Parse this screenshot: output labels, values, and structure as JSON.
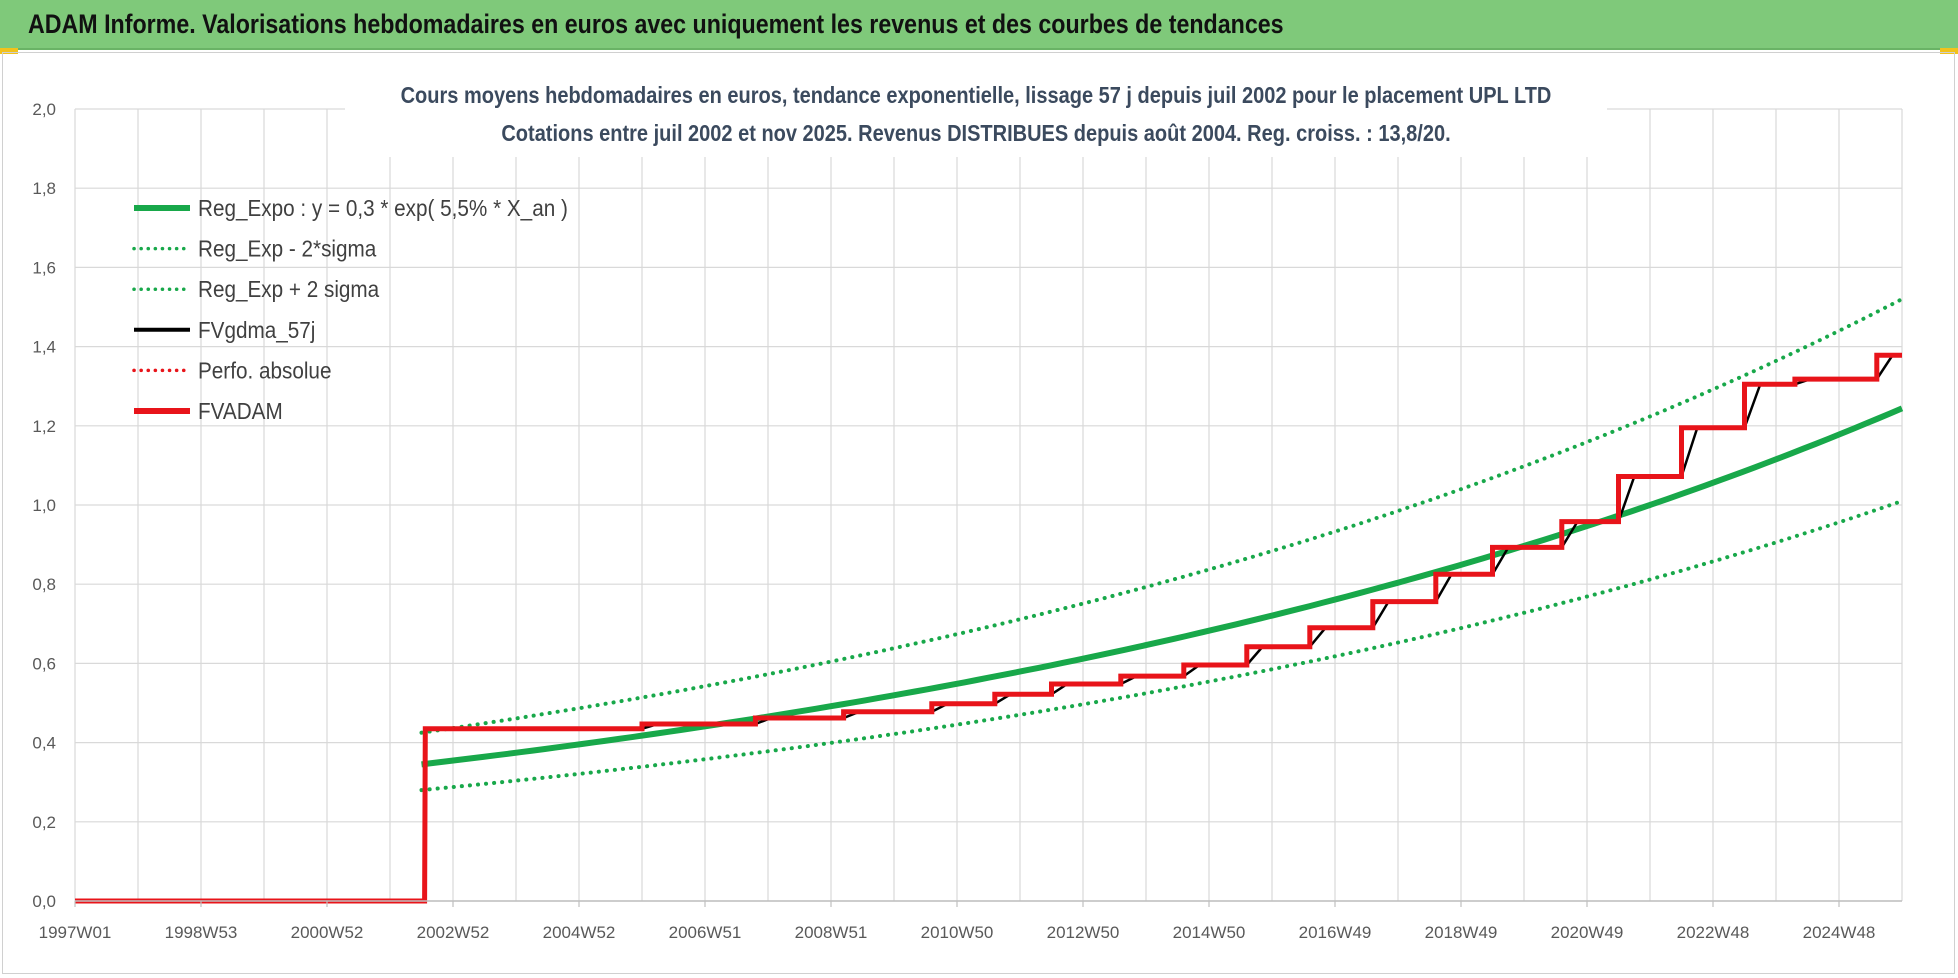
{
  "banner": {
    "title": "ADAM Informe. Valorisations hebdomadaires en euros avec uniquement les revenus et des courbes de tendances"
  },
  "colors": {
    "banner_bg": "#7fc97a",
    "green": "#18a84a",
    "red": "#e8141a",
    "black": "#000000",
    "grid": "#d9d9d9",
    "axis_text": "#595959"
  },
  "chart_data": {
    "type": "line",
    "title_line1": "Cours moyens hebdomadaires en euros, tendance exponentielle, lissage 57 j depuis juil 2002 pour le placement UPL LTD",
    "title_line2": "Cotations entre juil 2002 et nov 2025. Revenus DISTRIBUES depuis août 2004. Reg. croiss. : 13,8/20.",
    "xlabel": "",
    "ylabel": "",
    "x_range": [
      1997.0,
      2026.0
    ],
    "ylim": [
      0,
      2
    ],
    "y_ticks": [
      "0,0",
      "0,2",
      "0,4",
      "0,6",
      "0,8",
      "1,0",
      "1,2",
      "1,4",
      "1,6",
      "1,8",
      "2,0"
    ],
    "x_tick_labels": [
      "1997W01",
      "1998W53",
      "2000W52",
      "2002W52",
      "2004W52",
      "2006W51",
      "2008W51",
      "2010W50",
      "2012W50",
      "2014W50",
      "2016W49",
      "2018W49",
      "2020W49",
      "2022W48",
      "2024W48"
    ],
    "x_tick_positions": [
      1997.0,
      1999.0,
      2001.0,
      2003.0,
      2005.0,
      2007.0,
      2009.0,
      2011.0,
      2013.0,
      2015.0,
      2017.0,
      2019.0,
      2021.0,
      2023.0,
      2025.0
    ],
    "grid": true,
    "legend_position": "top-left",
    "legend": [
      {
        "label": "Reg_Expo : y = 0,3 * exp( 5,5% *  X_an )",
        "color": "#18a84a",
        "style": "solid-thick"
      },
      {
        "label": "Reg_Exp - 2*sigma",
        "color": "#18a84a",
        "style": "dotted"
      },
      {
        "label": "Reg_Exp + 2 sigma",
        "color": "#18a84a",
        "style": "dotted"
      },
      {
        "label": "FVgdma_57j",
        "color": "#000000",
        "style": "solid"
      },
      {
        "label": "Perfo. absolue",
        "color": "#e8141a",
        "style": "dotted"
      },
      {
        "label": "FVADAM",
        "color": "#e8141a",
        "style": "solid-thick"
      }
    ],
    "series": [
      {
        "name": "Reg_Expo",
        "x": [
          2002.5,
          2004,
          2006,
          2008,
          2010,
          2012,
          2014,
          2016,
          2018,
          2020,
          2022,
          2024,
          2026
        ],
        "values": [
          0.345,
          0.373,
          0.418,
          0.468,
          0.523,
          0.586,
          0.655,
          0.734,
          0.821,
          0.918,
          1.028,
          1.15,
          1.244
        ]
      },
      {
        "name": "Reg_Exp - 2*sigma",
        "x": [
          2002.5,
          2004,
          2006,
          2008,
          2010,
          2012,
          2014,
          2016,
          2018,
          2020,
          2022,
          2024,
          2026
        ],
        "values": [
          0.28,
          0.303,
          0.339,
          0.38,
          0.425,
          0.476,
          0.532,
          0.596,
          0.667,
          0.746,
          0.835,
          0.935,
          1.01
        ]
      },
      {
        "name": "Reg_Exp + 2 sigma",
        "x": [
          2002.5,
          2004,
          2006,
          2008,
          2010,
          2012,
          2014,
          2016,
          2018,
          2020,
          2022,
          2024,
          2026
        ],
        "values": [
          0.425,
          0.459,
          0.514,
          0.575,
          0.643,
          0.72,
          0.806,
          0.902,
          1.01,
          1.13,
          1.265,
          1.415,
          1.52
        ]
      },
      {
        "name": "FVADAM",
        "x": [
          1997.0,
          2002.55,
          2002.56,
          2006.0,
          2006.0,
          2007.8,
          2007.8,
          2009.2,
          2009.2,
          2010.6,
          2010.6,
          2011.6,
          2011.6,
          2012.5,
          2012.5,
          2013.6,
          2013.6,
          2014.6,
          2014.6,
          2015.6,
          2015.6,
          2016.6,
          2016.6,
          2017.6,
          2017.6,
          2018.6,
          2018.6,
          2019.5,
          2019.5,
          2020.6,
          2020.6,
          2021.5,
          2021.5,
          2022.5,
          2022.5,
          2023.5,
          2023.5,
          2024.3,
          2024.3,
          2025.6,
          2025.6,
          2026.0
        ],
        "values": [
          0.0,
          0.0,
          0.435,
          0.435,
          0.447,
          0.447,
          0.462,
          0.462,
          0.478,
          0.478,
          0.498,
          0.498,
          0.522,
          0.522,
          0.548,
          0.548,
          0.568,
          0.568,
          0.596,
          0.596,
          0.642,
          0.642,
          0.69,
          0.69,
          0.756,
          0.756,
          0.825,
          0.825,
          0.893,
          0.893,
          0.958,
          0.958,
          1.072,
          1.072,
          1.195,
          1.195,
          1.305,
          1.305,
          1.318,
          1.318,
          1.378,
          1.378
        ]
      }
    ]
  }
}
